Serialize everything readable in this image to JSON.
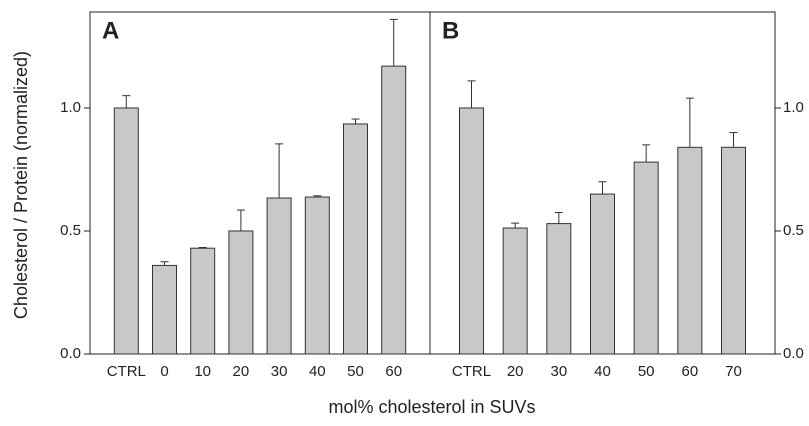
{
  "y_label": "Cholesterol / Protein (normalized)",
  "x_label": "mol% cholesterol in SUVs",
  "chart_data": [
    {
      "type": "bar",
      "title": "A",
      "y_axis_side": "left",
      "color": "#c8c8c8",
      "categories": [
        "CTRL",
        "0",
        "10",
        "20",
        "30",
        "40",
        "50",
        "60"
      ],
      "values": [
        1.0,
        0.36,
        0.43,
        0.5,
        0.634,
        0.638,
        0.935,
        1.17
      ],
      "errors": [
        0.05,
        0.015,
        0.003,
        0.085,
        0.22,
        0.005,
        0.02,
        0.19
      ],
      "ylim": [
        0,
        1.39
      ],
      "yticks": [
        {
          "value": 0,
          "label": "0.0"
        },
        {
          "value": 0.5,
          "label": "0.5"
        },
        {
          "value": 1,
          "label": "1.0"
        }
      ]
    },
    {
      "type": "bar",
      "title": "B",
      "y_axis_side": "right",
      "color": "#c8c8c8",
      "categories": [
        "CTRL",
        "20",
        "30",
        "40",
        "50",
        "60",
        "70"
      ],
      "values": [
        1.0,
        0.512,
        0.53,
        0.65,
        0.78,
        0.84,
        0.84
      ],
      "errors": [
        0.11,
        0.02,
        0.045,
        0.05,
        0.07,
        0.2,
        0.06
      ],
      "ylim": [
        0,
        1.39
      ],
      "yticks": [
        {
          "value": 0,
          "label": "0.0"
        },
        {
          "value": 0.5,
          "label": "0.5"
        },
        {
          "value": 1,
          "label": "1.0"
        }
      ]
    }
  ]
}
